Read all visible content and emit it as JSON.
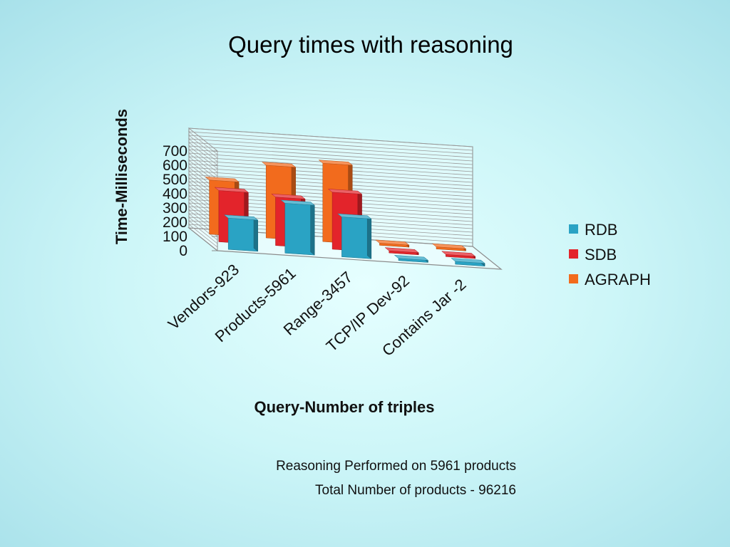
{
  "chart_data": {
    "type": "bar",
    "title": "Query times with reasoning",
    "xlabel": "Query-Number of triples",
    "ylabel": "Time-Milliseconds",
    "categories": [
      "Vendors-923",
      "Products-5961",
      "Range-3457",
      "TCP/IP Dev-92",
      "Contains Jar -2"
    ],
    "series": [
      {
        "name": "RDB",
        "values": [
          220,
          350,
          280,
          15,
          20
        ]
      },
      {
        "name": "SDB",
        "values": [
          360,
          340,
          400,
          15,
          15
        ]
      },
      {
        "name": "AGRAPH",
        "values": [
          380,
          510,
          550,
          15,
          15
        ]
      }
    ],
    "ylim": [
      0,
      700
    ],
    "yticks": [
      0,
      100,
      200,
      300,
      400,
      500,
      600,
      700
    ],
    "grid": true,
    "three_d": true,
    "legend_position": "right",
    "colors": {
      "RDB": "#2aa3c4",
      "SDB": "#e3242b",
      "AGRAPH": "#f26b1d"
    }
  },
  "notes": {
    "line1": "Reasoning Performed on 5961 products",
    "line2": "Total Number of products - 96216"
  }
}
